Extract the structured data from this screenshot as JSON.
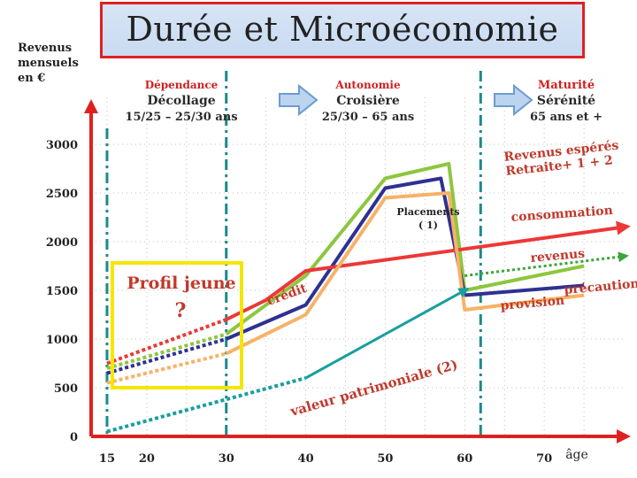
{
  "title": "Durée et Microéconomie",
  "chart_data": {
    "type": "line",
    "ylabel": [
      "Revenus",
      "mensuels",
      "en €"
    ],
    "xlabel": "âge",
    "x_ticks": [
      15,
      20,
      30,
      40,
      50,
      60,
      70
    ],
    "y_ticks": [
      0,
      500,
      1000,
      1500,
      2000,
      2500,
      3000
    ],
    "xlim": [
      13,
      80
    ],
    "ylim": [
      0,
      3300
    ],
    "phases": [
      {
        "lines": [
          "Dépendance",
          "Décollage",
          "15/25 – 25/30 ans"
        ],
        "colors": [
          "#d02020",
          "#2a2a2a",
          "#2a2a2a"
        ]
      },
      {
        "lines": [
          "Autonomie",
          "Croisière",
          "25/30 – 65 ans"
        ],
        "colors": [
          "#d02020",
          "#2a2a2a",
          "#2a2a2a"
        ]
      },
      {
        "lines": [
          "Maturité",
          "Sérénité",
          "65 ans et +"
        ],
        "colors": [
          "#d02020",
          "#2a2a2a",
          "#2a2a2a"
        ]
      }
    ],
    "dividers_x": [
      30,
      62
    ],
    "series": [
      {
        "color": "#8dc63f",
        "points": [
          [
            30,
            1050
          ],
          [
            40,
            1650
          ],
          [
            50,
            2650
          ],
          [
            58,
            2800
          ],
          [
            60,
            1500
          ],
          [
            75,
            1750
          ]
        ],
        "dashed_before": [
          [
            15,
            700
          ],
          [
            30,
            1050
          ]
        ]
      },
      {
        "color": "#2e3192",
        "points": [
          [
            30,
            1000
          ],
          [
            40,
            1350
          ],
          [
            50,
            2550
          ],
          [
            57,
            2650
          ],
          [
            60,
            1450
          ],
          [
            75,
            1550
          ]
        ],
        "dashed_before": [
          [
            15,
            650
          ],
          [
            30,
            1000
          ]
        ]
      },
      {
        "color": "#ed3737",
        "points": [
          [
            30,
            1200
          ],
          [
            35,
            1400
          ],
          [
            40,
            1700
          ],
          [
            80,
            2150
          ]
        ],
        "dashed_before": [
          [
            15,
            750
          ],
          [
            30,
            1200
          ]
        ]
      },
      {
        "color": "#f7b267",
        "points": [
          [
            30,
            850
          ],
          [
            40,
            1250
          ],
          [
            50,
            2450
          ],
          [
            58,
            2500
          ],
          [
            60,
            1300
          ],
          [
            75,
            1450
          ]
        ],
        "dashed_before": [
          [
            15,
            550
          ],
          [
            30,
            850
          ]
        ]
      },
      {
        "color": "#1a9e9e",
        "points": [
          [
            40,
            600
          ],
          [
            60,
            1500
          ]
        ],
        "dashed_before": [
          [
            15,
            50
          ],
          [
            40,
            600
          ]
        ]
      }
    ],
    "green_dotted": [
      [
        60,
        1650
      ],
      [
        80,
        1850
      ]
    ],
    "annotations": [
      {
        "text": "Revenus espérés",
        "color": "#c0392b"
      },
      {
        "text": "Retraite+ 1 + 2",
        "color": "#c0392b"
      },
      {
        "text": "Placements",
        "color": "#222222"
      },
      {
        "text": "( 1)",
        "color": "#222222"
      },
      {
        "text": "consommation",
        "color": "#c0392b"
      },
      {
        "text": "revenus",
        "color": "#c0392b"
      },
      {
        "text": "crédit",
        "color": "#c0392b"
      },
      {
        "text": "précaution",
        "color": "#c0392b"
      },
      {
        "text": "provision",
        "color": "#c0392b"
      },
      {
        "text": "valeur patrimoniale (2)",
        "color": "#c0392b"
      }
    ],
    "callout": {
      "lines": [
        "Profil   jeune",
        "?"
      ],
      "color": "#c0392b",
      "border": "#f5e600"
    }
  }
}
